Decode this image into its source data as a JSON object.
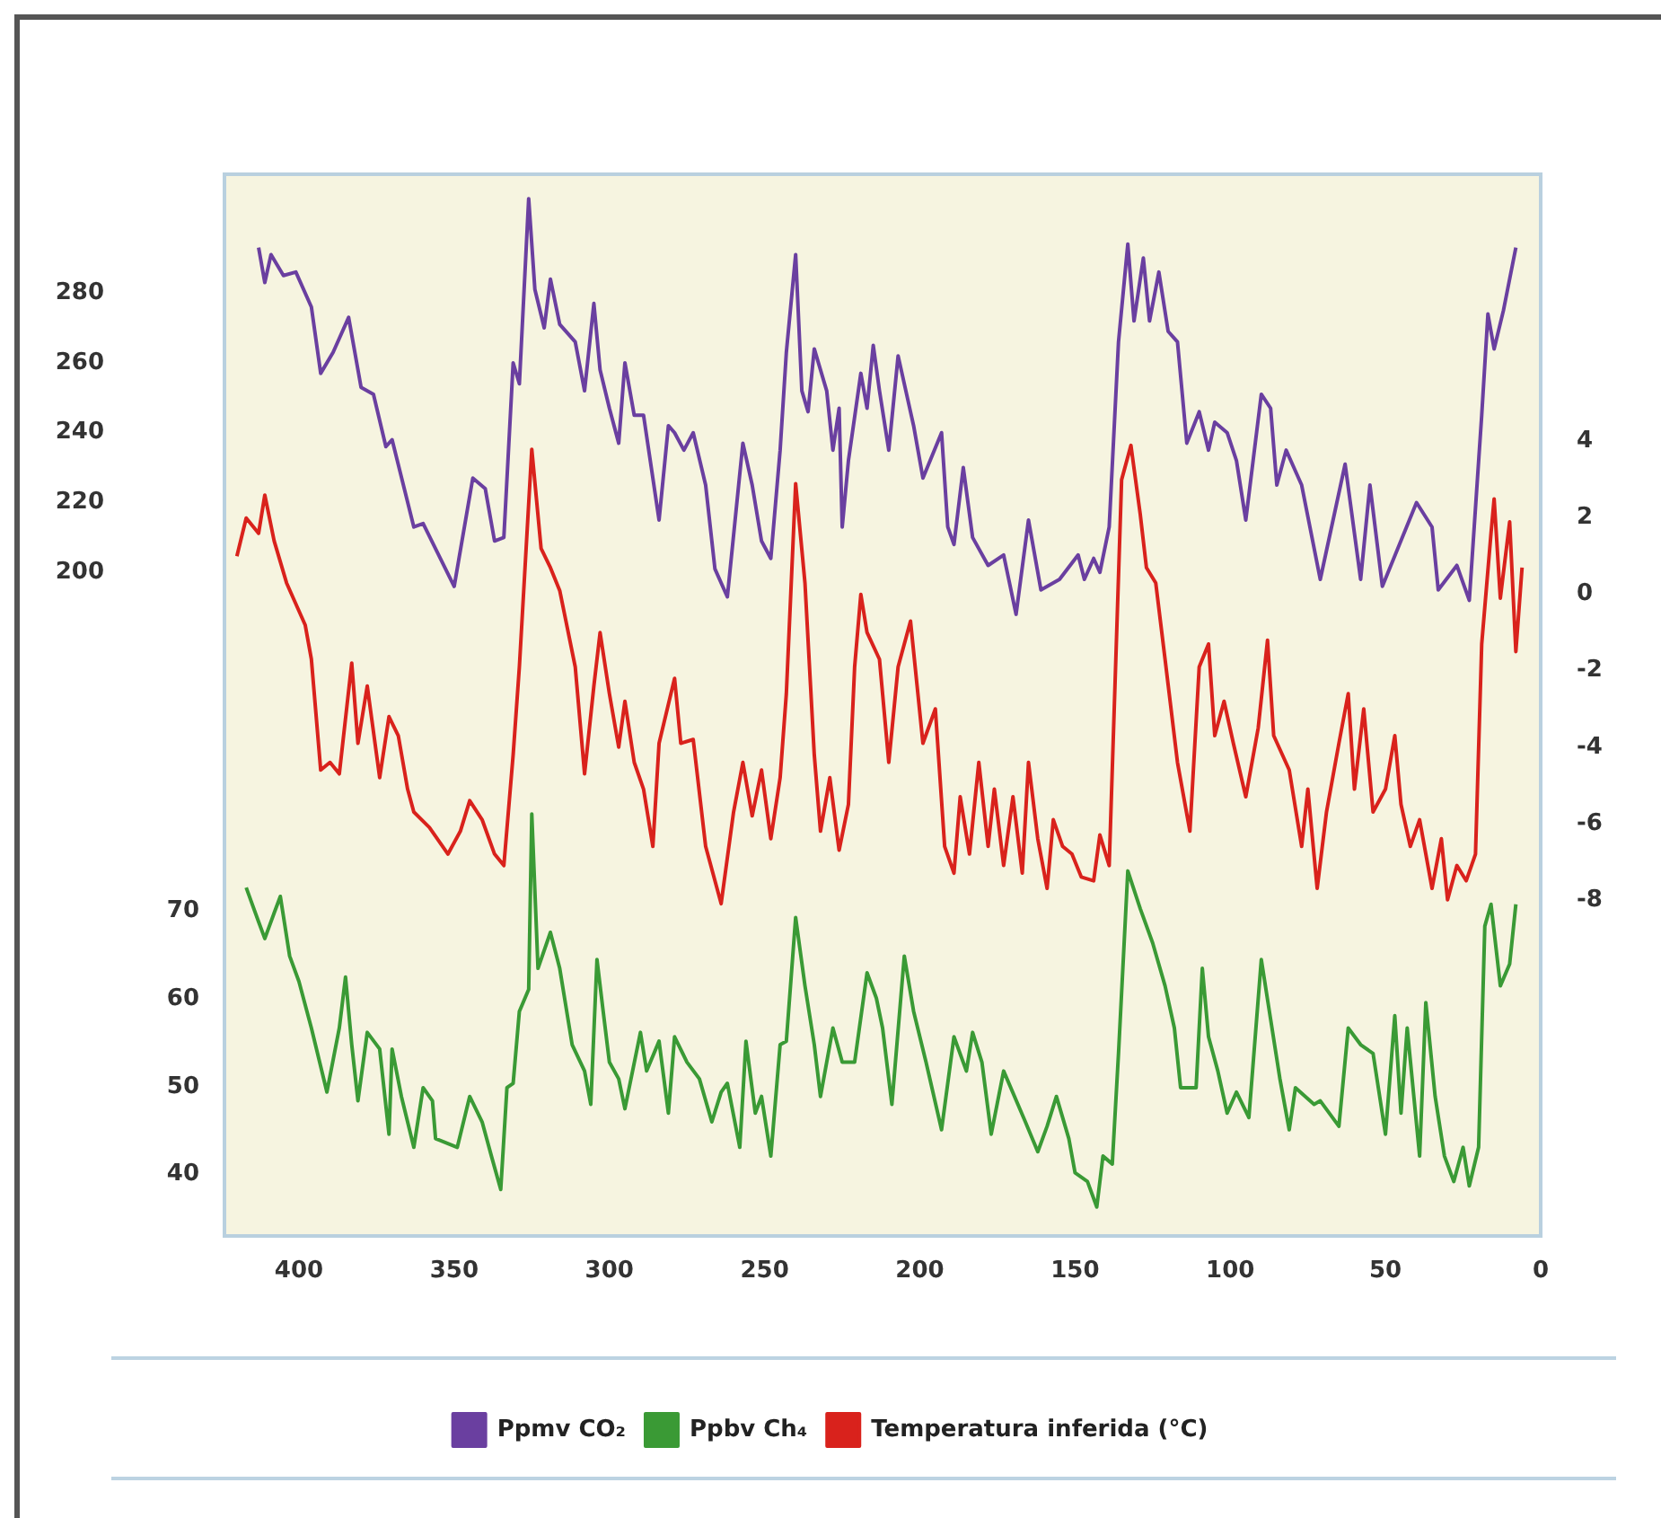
{
  "chart_data": {
    "type": "line",
    "xlim": [
      424,
      0
    ],
    "xticks": [
      400,
      350,
      300,
      250,
      200,
      150,
      100,
      50,
      0
    ],
    "ylim": [
      10,
      314
    ],
    "yticks": [
      200,
      220,
      240,
      260,
      280
    ],
    "y2lim": [
      -16.8,
      11
    ],
    "y2ticks": [
      -8,
      -6,
      -4,
      -2,
      0,
      2,
      4
    ],
    "y3lim": [
      33,
      154
    ],
    "y3ticks": [
      40,
      50,
      60,
      70
    ],
    "grid": false,
    "legend": "bottom",
    "marker": "none",
    "line_style": "solid",
    "series": [
      {
        "name": "Ppmv CO₂",
        "color": "#6a3fa0",
        "axis": "y",
        "x": [
          413,
          411,
          409,
          405,
          401,
          396,
          393,
          389,
          384,
          380,
          376,
          372,
          370,
          363,
          360,
          350,
          344,
          340,
          337,
          334,
          331,
          329,
          326,
          324,
          321,
          319,
          316,
          311,
          308,
          305,
          303,
          300,
          297,
          295,
          292,
          289,
          284,
          281,
          279,
          276,
          273,
          269,
          266,
          262,
          257,
          254,
          251,
          248,
          245,
          243,
          240,
          238,
          236,
          234,
          230,
          228,
          226,
          225,
          223,
          219,
          217,
          215,
          213,
          210,
          207,
          202,
          199,
          193,
          191,
          189,
          186,
          183,
          178,
          173,
          169,
          165,
          161,
          155,
          149,
          147,
          144,
          142,
          139,
          136,
          133,
          131,
          128,
          126,
          123,
          120,
          117,
          114,
          110,
          107,
          105,
          101,
          98,
          95,
          90,
          87,
          85,
          82,
          77,
          71,
          63,
          58,
          55,
          51,
          40,
          35,
          33,
          27,
          23,
          19,
          17,
          15,
          12,
          8
        ],
        "values": [
          293,
          283,
          291,
          285,
          286,
          276,
          257,
          263,
          273,
          253,
          251,
          236,
          238,
          213,
          214,
          196,
          227,
          224,
          209,
          210,
          260,
          254,
          307,
          281,
          270,
          284,
          271,
          266,
          252,
          277,
          258,
          247,
          237,
          260,
          245,
          245,
          215,
          242,
          240,
          235,
          240,
          225,
          201,
          193,
          237,
          225,
          209,
          204,
          235,
          263,
          291,
          252,
          246,
          264,
          252,
          235,
          247,
          213,
          232,
          257,
          247,
          265,
          252,
          235,
          262,
          242,
          227,
          240,
          213,
          208,
          230,
          210,
          202,
          205,
          188,
          215,
          195,
          198,
          205,
          198,
          204,
          200,
          213,
          266,
          294,
          272,
          290,
          272,
          286,
          269,
          266,
          237,
          246,
          235,
          243,
          240,
          232,
          215,
          251,
          247,
          225,
          235,
          225,
          198,
          231,
          198,
          225,
          196,
          220,
          213,
          195,
          202,
          192,
          245,
          274,
          264,
          275,
          293
        ]
      },
      {
        "name": "Ppbv Ch₄",
        "color": "#3a9a35",
        "axis": "y3",
        "x": [
          417,
          413,
          411,
          408,
          406,
          403,
          400,
          396,
          391,
          387,
          385,
          383,
          381,
          378,
          374,
          371,
          370,
          367,
          363,
          360,
          357,
          356,
          349,
          345,
          341,
          338,
          335,
          333,
          331,
          329,
          326,
          325,
          323,
          319,
          316,
          312,
          308,
          306,
          304,
          302,
          300,
          297,
          295,
          290,
          288,
          284,
          281,
          279,
          275,
          271,
          267,
          264,
          262,
          258,
          256,
          253,
          251,
          248,
          245,
          243,
          240,
          237,
          234,
          232,
          228,
          225,
          221,
          217,
          214,
          212,
          209,
          205,
          202,
          198,
          193,
          189,
          185,
          183,
          180,
          177,
          173,
          166,
          162,
          159,
          156,
          152,
          150,
          146,
          143,
          141,
          138,
          136,
          133,
          129,
          125,
          121,
          118,
          116,
          111,
          109,
          107,
          104,
          101,
          98,
          94,
          90,
          87,
          84,
          81,
          79,
          73,
          71,
          65,
          62,
          58,
          54,
          50,
          47,
          45,
          43,
          39,
          37,
          34,
          31,
          28,
          25,
          23,
          20,
          18,
          16,
          13,
          10,
          8
        ],
        "values": [
          72.7,
          68.8,
          66.9,
          69.8,
          71.7,
          64.9,
          62,
          56.7,
          49.4,
          56.7,
          62.5,
          54.8,
          48.4,
          56.2,
          54.3,
          44.6,
          54.3,
          48.9,
          43.1,
          49.9,
          48.4,
          44.1,
          43.1,
          48.9,
          46,
          42.1,
          38.3,
          49.9,
          50.4,
          58.6,
          61.1,
          81.1,
          63.5,
          67.6,
          63.5,
          54.8,
          51.8,
          48,
          64.5,
          58.6,
          52.8,
          50.9,
          47.5,
          56.2,
          51.8,
          55.2,
          47,
          55.7,
          52.8,
          50.9,
          46,
          49.4,
          50.4,
          43.1,
          55.2,
          47,
          48.9,
          42.1,
          54.8,
          55.2,
          69.3,
          61.5,
          54.8,
          48.9,
          56.7,
          52.8,
          52.8,
          63,
          60.1,
          56.7,
          48,
          64.9,
          58.6,
          52.8,
          45.1,
          55.7,
          51.8,
          56.2,
          52.8,
          44.6,
          51.8,
          46,
          42.6,
          45.5,
          48.9,
          44.1,
          40.2,
          39.2,
          36.3,
          42.1,
          41.2,
          53.8,
          74.6,
          70.3,
          66.4,
          61.5,
          56.7,
          49.9,
          49.9,
          63.5,
          55.7,
          51.8,
          47,
          49.4,
          46.5,
          64.5,
          57.7,
          50.9,
          45.1,
          49.9,
          48,
          48.4,
          45.5,
          56.7,
          54.8,
          53.8,
          44.6,
          58.1,
          47,
          56.7,
          42.1,
          59.6,
          48.9,
          42.1,
          39.2,
          43.1,
          38.7,
          43.1,
          68.3,
          70.8,
          61.5,
          64,
          70.8
        ]
      },
      {
        "name": "Temperatura inferida (°C)",
        "color": "#d9221c",
        "axis": "y2",
        "x": [
          420,
          417,
          413,
          411,
          408,
          404,
          398,
          396,
          393,
          390,
          387,
          383,
          381,
          378,
          374,
          371,
          368,
          365,
          363,
          358,
          352,
          348,
          345,
          341,
          337,
          334,
          331,
          329,
          325,
          322,
          319,
          316,
          311,
          308,
          305,
          303,
          300,
          297,
          295,
          292,
          289,
          286,
          284,
          279,
          277,
          273,
          269,
          264,
          260,
          257,
          254,
          251,
          248,
          245,
          243,
          240,
          237,
          234,
          232,
          229,
          226,
          223,
          221,
          219,
          217,
          213,
          210,
          207,
          203,
          199,
          195,
          192,
          189,
          187,
          184,
          181,
          178,
          176,
          173,
          170,
          167,
          165,
          162,
          159,
          157,
          154,
          151,
          148,
          144,
          142,
          139,
          135,
          132,
          129,
          127,
          124,
          121,
          117,
          113,
          110,
          107,
          105,
          102,
          99,
          95,
          91,
          88,
          86,
          81,
          77,
          75,
          72,
          69,
          65,
          62,
          60,
          57,
          54,
          50,
          47,
          45,
          42,
          39,
          35,
          32,
          30,
          27,
          24,
          21,
          19,
          16,
          15,
          13,
          10,
          8,
          6
        ],
        "values": [
          1.0,
          2.0,
          1.6,
          2.6,
          1.4,
          0.3,
          -0.8,
          -1.7,
          -4.6,
          -4.4,
          -4.7,
          -1.8,
          -3.9,
          -2.4,
          -4.8,
          -3.2,
          -3.7,
          -5.1,
          -5.7,
          -6.1,
          -6.8,
          -6.2,
          -5.4,
          -5.9,
          -6.8,
          -7.1,
          -4.2,
          -1.9,
          3.8,
          1.2,
          0.7,
          0.1,
          -1.9,
          -4.7,
          -2.4,
          -1.0,
          -2.6,
          -4.0,
          -2.8,
          -4.4,
          -5.1,
          -6.6,
          -3.9,
          -2.2,
          -3.9,
          -3.8,
          -6.6,
          -8.1,
          -5.7,
          -4.4,
          -5.8,
          -4.6,
          -6.4,
          -4.8,
          -2.6,
          2.9,
          0.3,
          -4.2,
          -6.2,
          -4.8,
          -6.7,
          -5.5,
          -1.9,
          0.0,
          -1.0,
          -1.7,
          -4.4,
          -1.9,
          -0.7,
          -3.9,
          -3.0,
          -6.6,
          -7.3,
          -5.3,
          -6.8,
          -4.4,
          -6.6,
          -5.1,
          -7.1,
          -5.3,
          -7.3,
          -4.4,
          -6.4,
          -7.7,
          -5.9,
          -6.6,
          -6.8,
          -7.4,
          -7.5,
          -6.3,
          -7.1,
          3.0,
          3.9,
          2.1,
          0.7,
          0.3,
          -1.7,
          -4.4,
          -6.2,
          -1.9,
          -1.3,
          -3.7,
          -2.8,
          -3.9,
          -5.3,
          -3.5,
          -1.2,
          -3.7,
          -4.6,
          -6.6,
          -5.1,
          -7.7,
          -5.7,
          -3.9,
          -2.6,
          -5.1,
          -3.0,
          -5.7,
          -5.1,
          -3.7,
          -5.5,
          -6.6,
          -5.9,
          -7.7,
          -6.4,
          -8.0,
          -7.1,
          -7.5,
          -6.8,
          -1.3,
          1.6,
          2.5,
          -0.1,
          1.9,
          -1.5,
          0.7
        ]
      }
    ]
  }
}
